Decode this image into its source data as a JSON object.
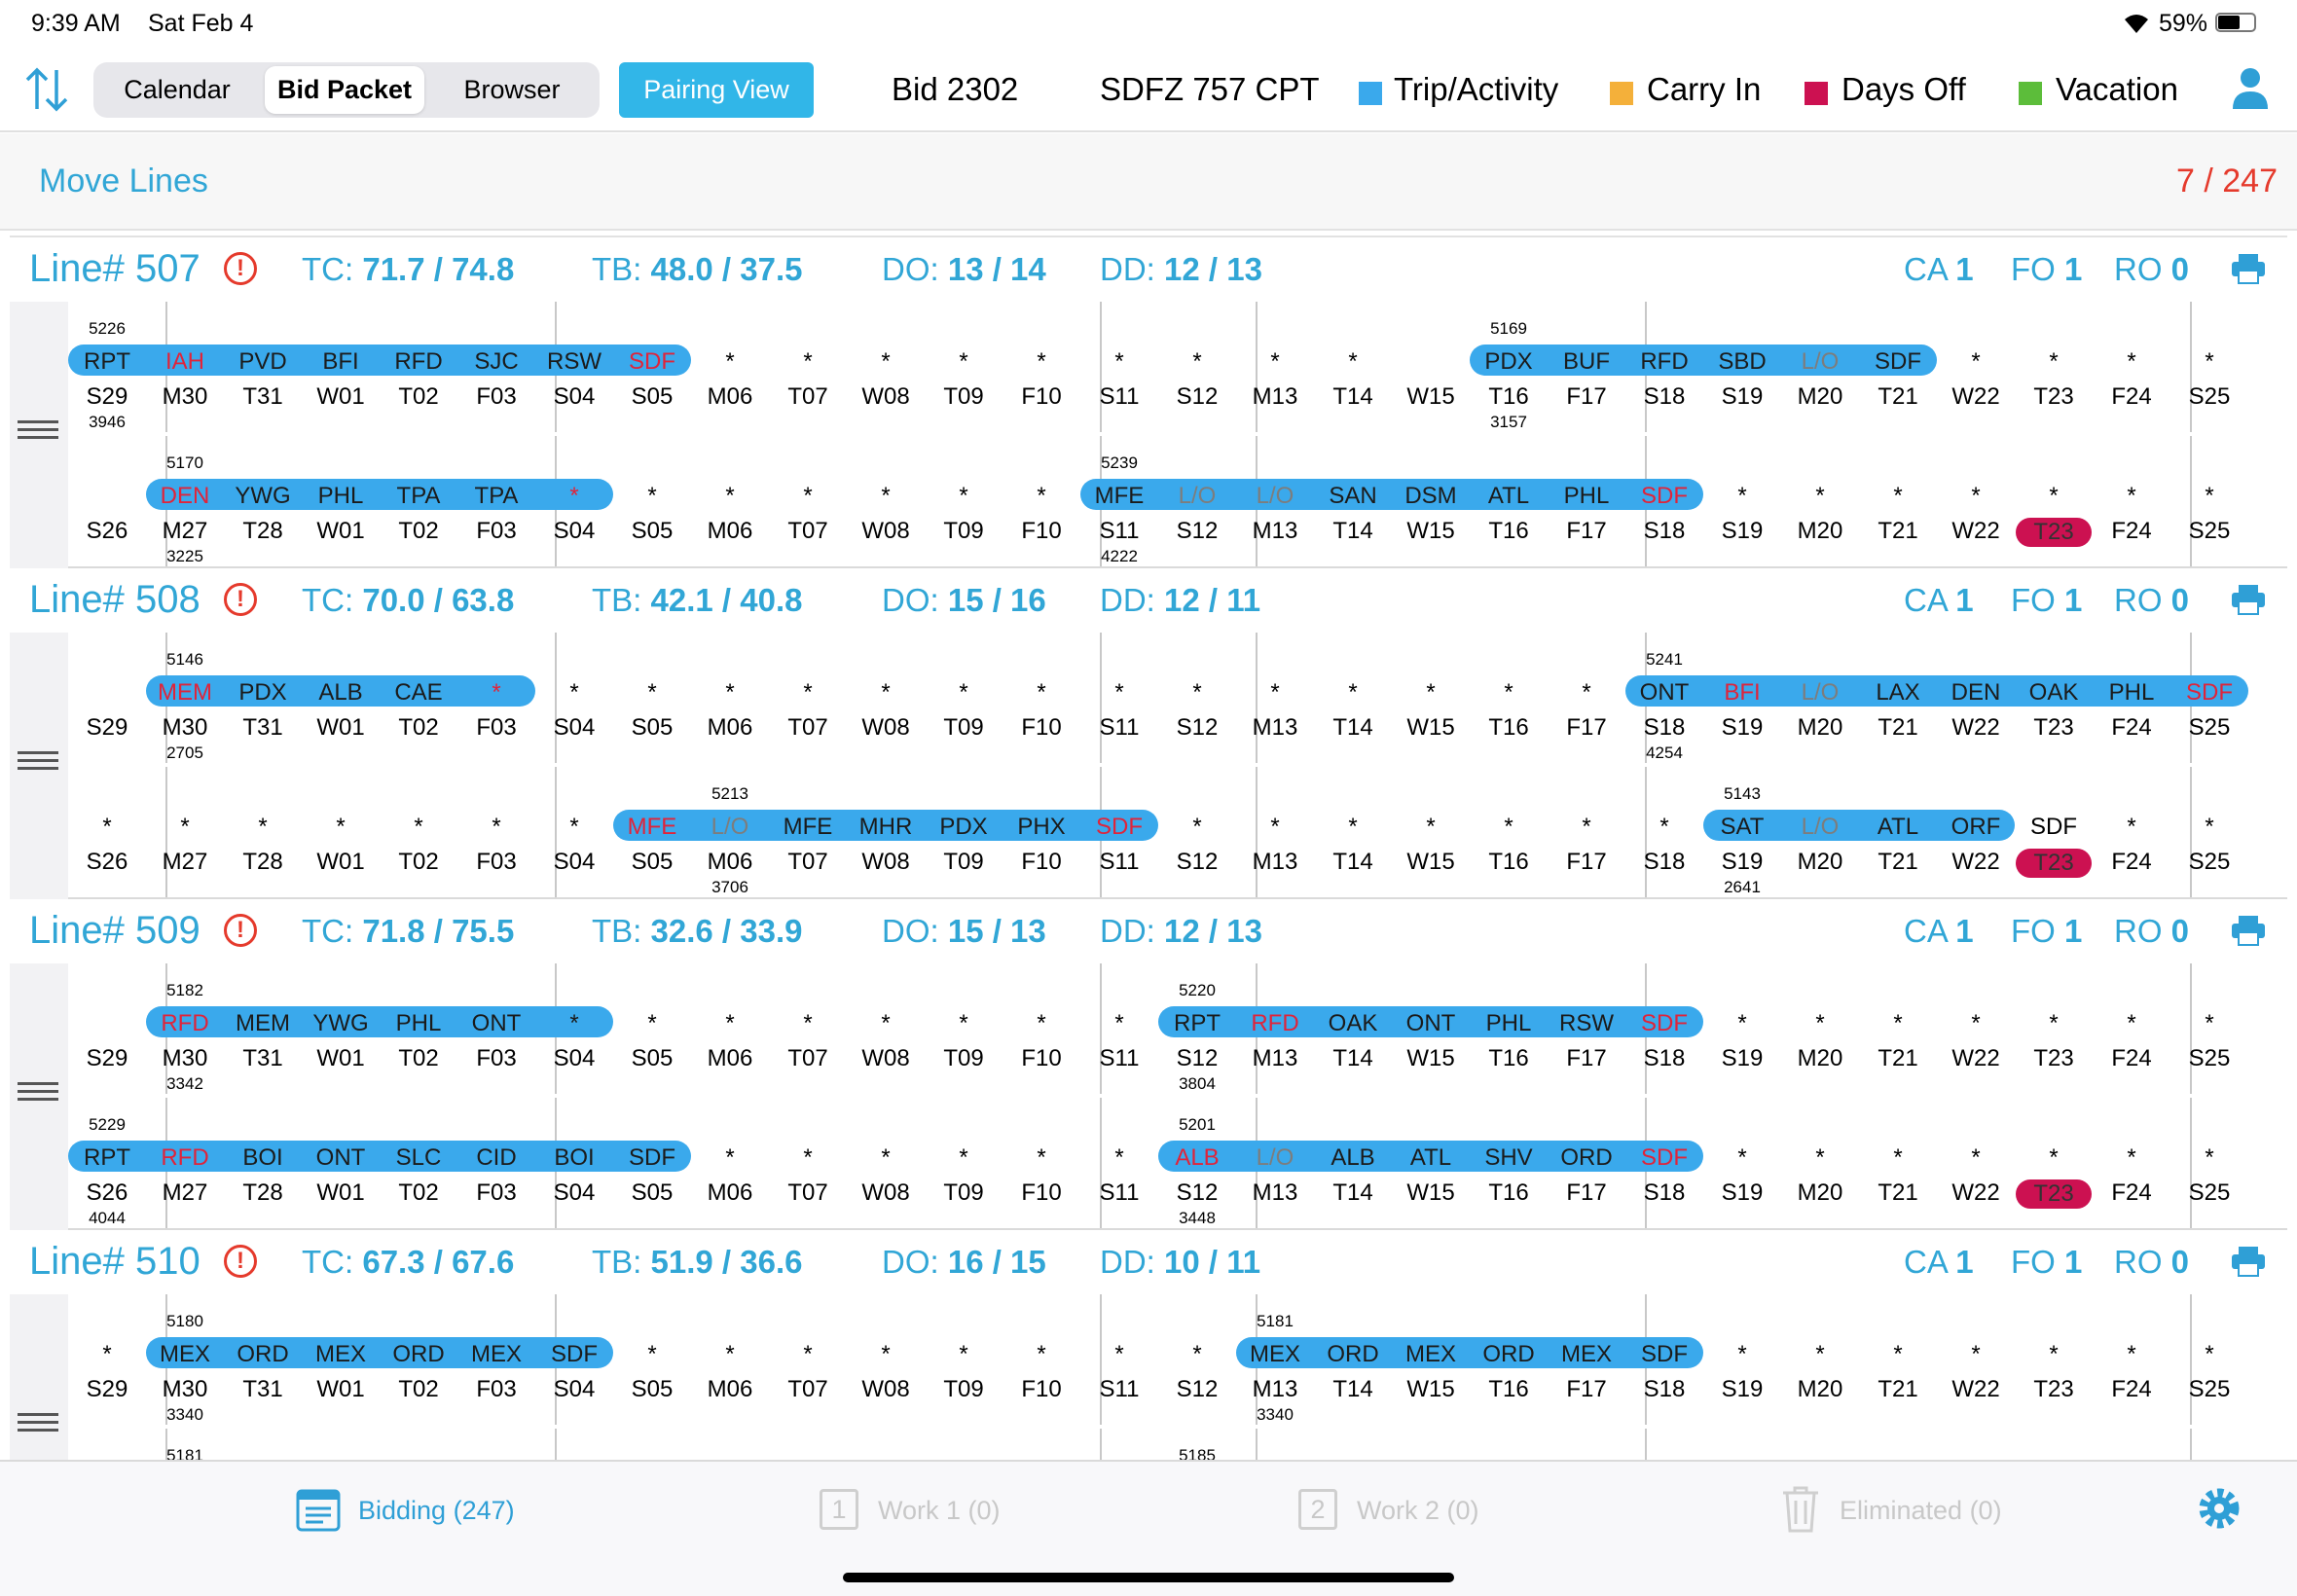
{
  "status_bar": {
    "time": "9:39 AM",
    "date": "Sat Feb 4",
    "battery": "59%"
  },
  "header": {
    "segments": [
      "Calendar",
      "Bid Packet",
      "Browser"
    ],
    "selected_segment": 1,
    "pairing_view_label": "Pairing View",
    "bid": "Bid 2302",
    "position": "SDFZ 757 CPT",
    "legend": [
      {
        "label": "Trip/Activity",
        "color": "#3aa9ec"
      },
      {
        "label": "Carry In",
        "color": "#f4b03a"
      },
      {
        "label": "Days Off",
        "color": "#cc1151"
      },
      {
        "label": "Vacation",
        "color": "#5cbd3a"
      }
    ]
  },
  "toolbar": {
    "move_lines_label": "Move Lines",
    "count": "7 / 247"
  },
  "lines": [
    {
      "title": "Line# 507",
      "tc_label": "TC:",
      "tc": "71.7 / 74.8",
      "tb_label": "TB:",
      "tb": "48.0 / 37.5",
      "do_label": "DO:",
      "do": "13 / 14",
      "dd_label": "DD:",
      "dd": "12 / 13",
      "ca_label": "CA",
      "ca": "1",
      "fo_label": "FO",
      "fo": "1",
      "ro_label": "RO",
      "ro": "0",
      "rows": [
        {
          "days": [
            "S29",
            "M30",
            "T31",
            "W01",
            "T02",
            "F03",
            "S04",
            "S05",
            "M06",
            "T07",
            "W08",
            "T09",
            "F10",
            "S11",
            "S12",
            "M13",
            "T14",
            "W15",
            "T16",
            "F17",
            "S18",
            "S19",
            "M20",
            "T21",
            "W22",
            "T23",
            "F24",
            "S25"
          ],
          "cells": [
            "RPT",
            "IAH",
            "PVD",
            "BFI",
            "RFD",
            "SJC",
            "RSW",
            "SDF",
            "*",
            "*",
            "*",
            "*",
            "*",
            "*",
            "*",
            "*",
            "*",
            "",
            "PDX",
            "BUF",
            "RFD",
            "SBD",
            "L/O",
            "SDF",
            "*",
            "*",
            "*",
            "*"
          ],
          "red": [
            1,
            7
          ],
          "grey": [
            22
          ],
          "trips": [
            {
              "no": "5226",
              "sub": "3946",
              "from": 0,
              "to": 7,
              "arrow": 0
            },
            {
              "no": "5169",
              "sub": "3157",
              "from": 18,
              "to": 23,
              "arrow": 18
            }
          ],
          "dayoff": -1
        },
        {
          "days": [
            "S26",
            "M27",
            "T28",
            "W01",
            "T02",
            "F03",
            "S04",
            "S05",
            "M06",
            "T07",
            "W08",
            "T09",
            "F10",
            "S11",
            "S12",
            "M13",
            "T14",
            "W15",
            "T16",
            "F17",
            "S18",
            "S19",
            "M20",
            "T21",
            "W22",
            "T23",
            "F24",
            "S25"
          ],
          "cells": [
            "",
            "DEN",
            "YWG",
            "PHL",
            "TPA",
            "TPA",
            "*",
            "*",
            "*",
            "*",
            "*",
            "*",
            "*",
            "MFE",
            "L/O",
            "L/O",
            "SAN",
            "DSM",
            "ATL",
            "PHL",
            "SDF",
            "*",
            "*",
            "*",
            "*",
            "*",
            "*",
            "*"
          ],
          "red": [
            1,
            6,
            20
          ],
          "grey": [
            14,
            15
          ],
          "trips": [
            {
              "no": "5170",
              "sub": "3225",
              "from": 1,
              "to": 6,
              "arrow": 1
            },
            {
              "no": "5239",
              "sub": "4222",
              "from": 13,
              "to": 20,
              "arrow": 13
            }
          ],
          "dayoff": 25
        }
      ]
    },
    {
      "title": "Line# 508",
      "tc_label": "TC:",
      "tc": "70.0 / 63.8",
      "tb_label": "TB:",
      "tb": "42.1 / 40.8",
      "do_label": "DO:",
      "do": "15 / 16",
      "dd_label": "DD:",
      "dd": "12 / 11",
      "ca_label": "CA",
      "ca": "1",
      "fo_label": "FO",
      "fo": "1",
      "ro_label": "RO",
      "ro": "0",
      "rows": [
        {
          "days": [
            "S29",
            "M30",
            "T31",
            "W01",
            "T02",
            "F03",
            "S04",
            "S05",
            "M06",
            "T07",
            "W08",
            "T09",
            "F10",
            "S11",
            "S12",
            "M13",
            "T14",
            "W15",
            "T16",
            "F17",
            "S18",
            "S19",
            "M20",
            "T21",
            "W22",
            "T23",
            "F24",
            "S25"
          ],
          "cells": [
            "",
            "MEM",
            "PDX",
            "ALB",
            "CAE",
            "*",
            "*",
            "*",
            "*",
            "*",
            "*",
            "*",
            "*",
            "*",
            "*",
            "*",
            "*",
            "*",
            "*",
            "*",
            "ONT",
            "BFI",
            "L/O",
            "LAX",
            "DEN",
            "OAK",
            "PHL",
            "SDF"
          ],
          "red": [
            1,
            5,
            21,
            27
          ],
          "grey": [
            22
          ],
          "trips": [
            {
              "no": "5146",
              "sub": "2705",
              "from": 1,
              "to": 5,
              "arrow": 1
            },
            {
              "no": "5241",
              "sub": "4254",
              "from": 20,
              "to": 27,
              "arrow": 20
            }
          ],
          "dayoff": -1
        },
        {
          "days": [
            "S26",
            "M27",
            "T28",
            "W01",
            "T02",
            "F03",
            "S04",
            "S05",
            "M06",
            "T07",
            "W08",
            "T09",
            "F10",
            "S11",
            "S12",
            "M13",
            "T14",
            "W15",
            "T16",
            "F17",
            "S18",
            "S19",
            "M20",
            "T21",
            "W22",
            "T23",
            "F24",
            "S25"
          ],
          "cells": [
            "*",
            "*",
            "*",
            "*",
            "*",
            "*",
            "*",
            "MFE",
            "L/O",
            "MFE",
            "MHR",
            "PDX",
            "PHX",
            "SDF",
            "*",
            "*",
            "*",
            "*",
            "*",
            "*",
            "*",
            "SAT",
            "L/O",
            "ATL",
            "ORF",
            "SDF",
            "*",
            "*"
          ],
          "red": [
            7,
            13
          ],
          "grey": [
            8,
            22
          ],
          "trips": [
            {
              "no": "5213",
              "sub": "3706",
              "from": 7,
              "to": 13,
              "arrow": 8
            },
            {
              "no": "5143",
              "sub": "2641",
              "from": 21,
              "to": 24,
              "arrow": 21
            }
          ],
          "dayoff": 25
        }
      ]
    },
    {
      "title": "Line# 509",
      "tc_label": "TC:",
      "tc": "71.8 / 75.5",
      "tb_label": "TB:",
      "tb": "32.6 / 33.9",
      "do_label": "DO:",
      "do": "15 / 13",
      "dd_label": "DD:",
      "dd": "12 / 13",
      "ca_label": "CA",
      "ca": "1",
      "fo_label": "FO",
      "fo": "1",
      "ro_label": "RO",
      "ro": "0",
      "rows": [
        {
          "days": [
            "S29",
            "M30",
            "T31",
            "W01",
            "T02",
            "F03",
            "S04",
            "S05",
            "M06",
            "T07",
            "W08",
            "T09",
            "F10",
            "S11",
            "S12",
            "M13",
            "T14",
            "W15",
            "T16",
            "F17",
            "S18",
            "S19",
            "M20",
            "T21",
            "W22",
            "T23",
            "F24",
            "S25"
          ],
          "cells": [
            "",
            "RFD",
            "MEM",
            "YWG",
            "PHL",
            "ONT",
            "*",
            "*",
            "*",
            "*",
            "*",
            "*",
            "*",
            "*",
            "RPT",
            "RFD",
            "OAK",
            "ONT",
            "PHL",
            "RSW",
            "SDF",
            "*",
            "*",
            "*",
            "*",
            "*",
            "*",
            "*"
          ],
          "red": [
            1,
            15,
            20
          ],
          "grey": [],
          "trips": [
            {
              "no": "5182",
              "sub": "3342",
              "from": 1,
              "to": 6,
              "arrow": 1
            },
            {
              "no": "5220",
              "sub": "3804",
              "from": 14,
              "to": 20,
              "arrow": 14
            }
          ],
          "dayoff": -1
        },
        {
          "days": [
            "S26",
            "M27",
            "T28",
            "W01",
            "T02",
            "F03",
            "S04",
            "S05",
            "M06",
            "T07",
            "W08",
            "T09",
            "F10",
            "S11",
            "S12",
            "M13",
            "T14",
            "W15",
            "T16",
            "F17",
            "S18",
            "S19",
            "M20",
            "T21",
            "W22",
            "T23",
            "F24",
            "S25"
          ],
          "cells": [
            "RPT",
            "RFD",
            "BOI",
            "ONT",
            "SLC",
            "CID",
            "BOI",
            "SDF",
            "*",
            "*",
            "*",
            "*",
            "*",
            "*",
            "ALB",
            "L/O",
            "ALB",
            "ATL",
            "SHV",
            "ORD",
            "SDF",
            "*",
            "*",
            "*",
            "*",
            "*",
            "*",
            "*"
          ],
          "red": [
            1,
            14,
            20
          ],
          "grey": [
            15
          ],
          "trips": [
            {
              "no": "5229",
              "sub": "4044",
              "from": 0,
              "to": 7,
              "arrow": 0
            },
            {
              "no": "5201",
              "sub": "3448",
              "from": 14,
              "to": 20,
              "arrow": 14
            }
          ],
          "dayoff": 25
        }
      ]
    },
    {
      "title": "Line# 510",
      "tc_label": "TC:",
      "tc": "67.3 / 67.6",
      "tb_label": "TB:",
      "tb": "51.9 / 36.6",
      "do_label": "DO:",
      "do": "16 / 15",
      "dd_label": "DD:",
      "dd": "10 / 11",
      "ca_label": "CA",
      "ca": "1",
      "fo_label": "FO",
      "fo": "1",
      "ro_label": "RO",
      "ro": "0",
      "rows": [
        {
          "days": [
            "S29",
            "M30",
            "T31",
            "W01",
            "T02",
            "F03",
            "S04",
            "S05",
            "M06",
            "T07",
            "W08",
            "T09",
            "F10",
            "S11",
            "S12",
            "M13",
            "T14",
            "W15",
            "T16",
            "F17",
            "S18",
            "S19",
            "M20",
            "T21",
            "W22",
            "T23",
            "F24",
            "S25"
          ],
          "cells": [
            "*",
            "MEX",
            "ORD",
            "MEX",
            "ORD",
            "MEX",
            "SDF",
            "*",
            "*",
            "*",
            "*",
            "*",
            "*",
            "*",
            "*",
            "MEX",
            "ORD",
            "MEX",
            "ORD",
            "MEX",
            "SDF",
            "*",
            "*",
            "*",
            "*",
            "*",
            "*",
            "*"
          ],
          "red": [],
          "grey": [],
          "trips": [
            {
              "no": "5180",
              "sub": "3340",
              "from": 1,
              "to": 6,
              "arrow": 1
            },
            {
              "no": "5181",
              "sub": "3340",
              "from": 15,
              "to": 20,
              "arrow": 15
            }
          ],
          "dayoff": -1
        },
        {
          "days": [],
          "cells": [],
          "red": [],
          "grey": [],
          "trips": [
            {
              "no": "5181",
              "sub": "",
              "from": 1,
              "to": 1,
              "arrow": 1
            },
            {
              "no": "5185",
              "sub": "",
              "from": 14,
              "to": 14,
              "arrow": 14
            }
          ],
          "dayoff": -1
        }
      ]
    }
  ],
  "tabs": [
    {
      "label": "Bidding (247)",
      "icon": "list-icon",
      "active": true
    },
    {
      "label": "Work 1 (0)",
      "icon": "work-1-icon",
      "active": false
    },
    {
      "label": "Work 2 (0)",
      "icon": "work-2-icon",
      "active": false
    },
    {
      "label": "Eliminated (0)",
      "icon": "trash-icon",
      "active": false
    }
  ]
}
